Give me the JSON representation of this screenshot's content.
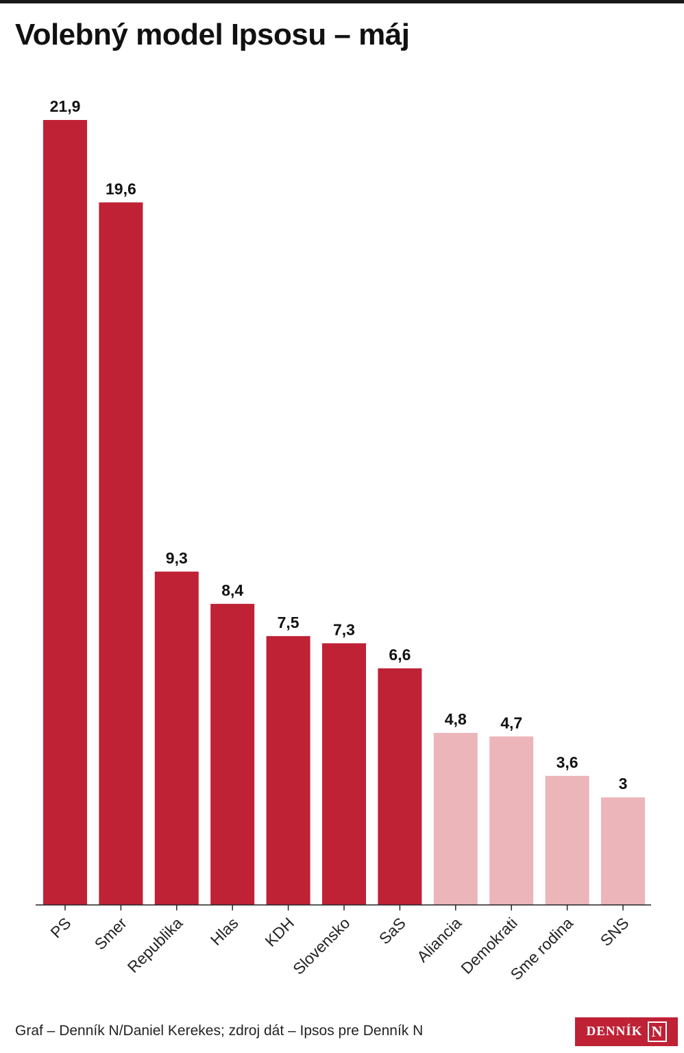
{
  "title": "Volebný model Ipsosu – máj",
  "footer": {
    "source": "Graf – Denník N/Daniel Kerekes; zdroj dát – Ipsos pre Denník N"
  },
  "logo": {
    "text": "DENNÍK",
    "mark": "N"
  },
  "colors": {
    "above_threshold": "#bf2135",
    "below_threshold": "#ecb5b9",
    "axis": "#222222"
  },
  "chart_data": {
    "type": "bar",
    "title": "Volebný model Ipsosu – máj",
    "xlabel": "",
    "ylabel": "",
    "categories": [
      "PS",
      "Smer",
      "Republika",
      "Hlas",
      "KDH",
      "Slovensko",
      "SaS",
      "Aliancia",
      "Demokrati",
      "Sme rodina",
      "SNS"
    ],
    "values": [
      21.9,
      19.6,
      9.3,
      8.4,
      7.5,
      7.3,
      6.6,
      4.8,
      4.7,
      3.6,
      3
    ],
    "value_labels": [
      "21,9",
      "19,6",
      "9,3",
      "8,4",
      "7,5",
      "7,3",
      "6,6",
      "4,8",
      "4,7",
      "3,6",
      "3"
    ],
    "bar_colors": [
      "#bf2135",
      "#bf2135",
      "#bf2135",
      "#bf2135",
      "#bf2135",
      "#bf2135",
      "#bf2135",
      "#ecb5b9",
      "#ecb5b9",
      "#ecb5b9",
      "#ecb5b9"
    ],
    "ylim": [
      0,
      21.9
    ],
    "grid": false,
    "legend": "none"
  }
}
